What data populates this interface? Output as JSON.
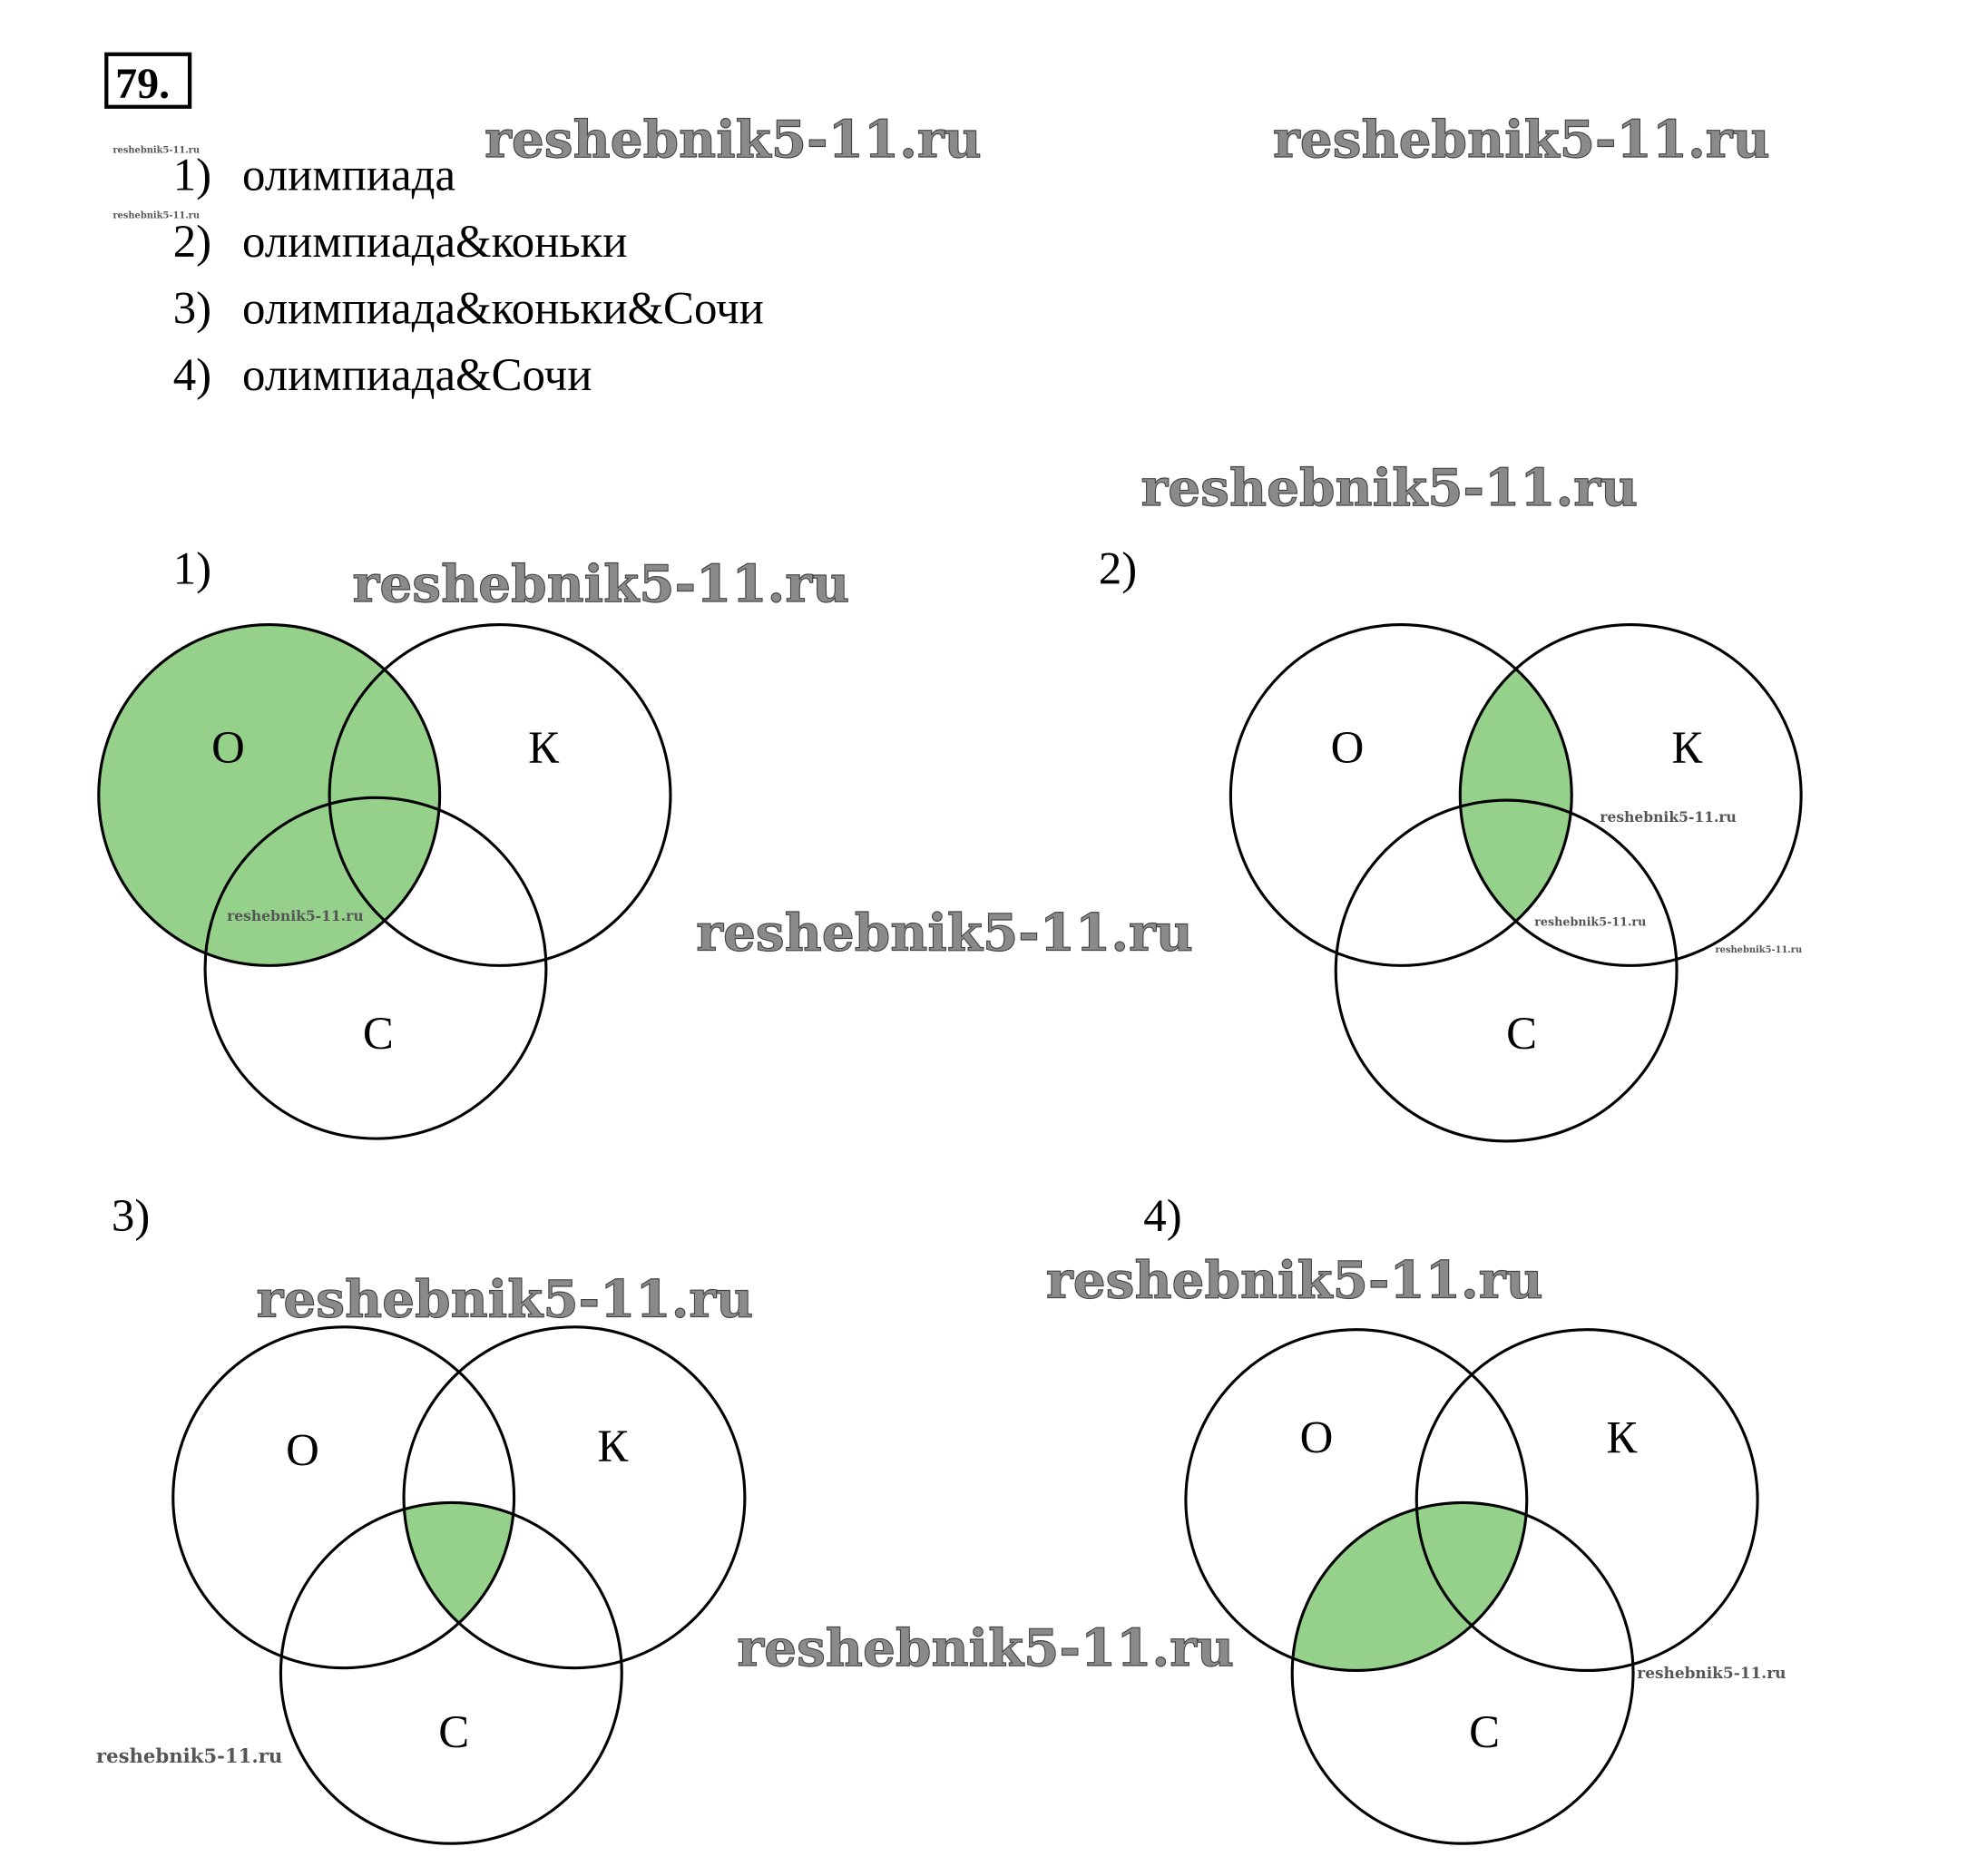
{
  "problem_number": "79.",
  "queries": [
    {
      "num": "1)",
      "text": "олимпиада"
    },
    {
      "num": "2)",
      "text": "олимпиада&коньки"
    },
    {
      "num": "3)",
      "text": "олимпиада&коньки&Сочи"
    },
    {
      "num": "4)",
      "text": "олимпиада&Сочи"
    }
  ],
  "diagrams": [
    {
      "num": "1)",
      "labels": [
        "О",
        "К",
        "С"
      ],
      "shaded": "О"
    },
    {
      "num": "2)",
      "labels": [
        "О",
        "К",
        "С"
      ],
      "shaded": "О∩К"
    },
    {
      "num": "3)",
      "labels": [
        "О",
        "К",
        "С"
      ],
      "shaded": "О∩К∩С"
    },
    {
      "num": "4)",
      "labels": [
        "О",
        "К",
        "С"
      ],
      "shaded": "О∩С"
    }
  ],
  "colors": {
    "shade": "#95d18a",
    "outline": "#000000"
  },
  "watermark": "reshebnik5-11.ru"
}
